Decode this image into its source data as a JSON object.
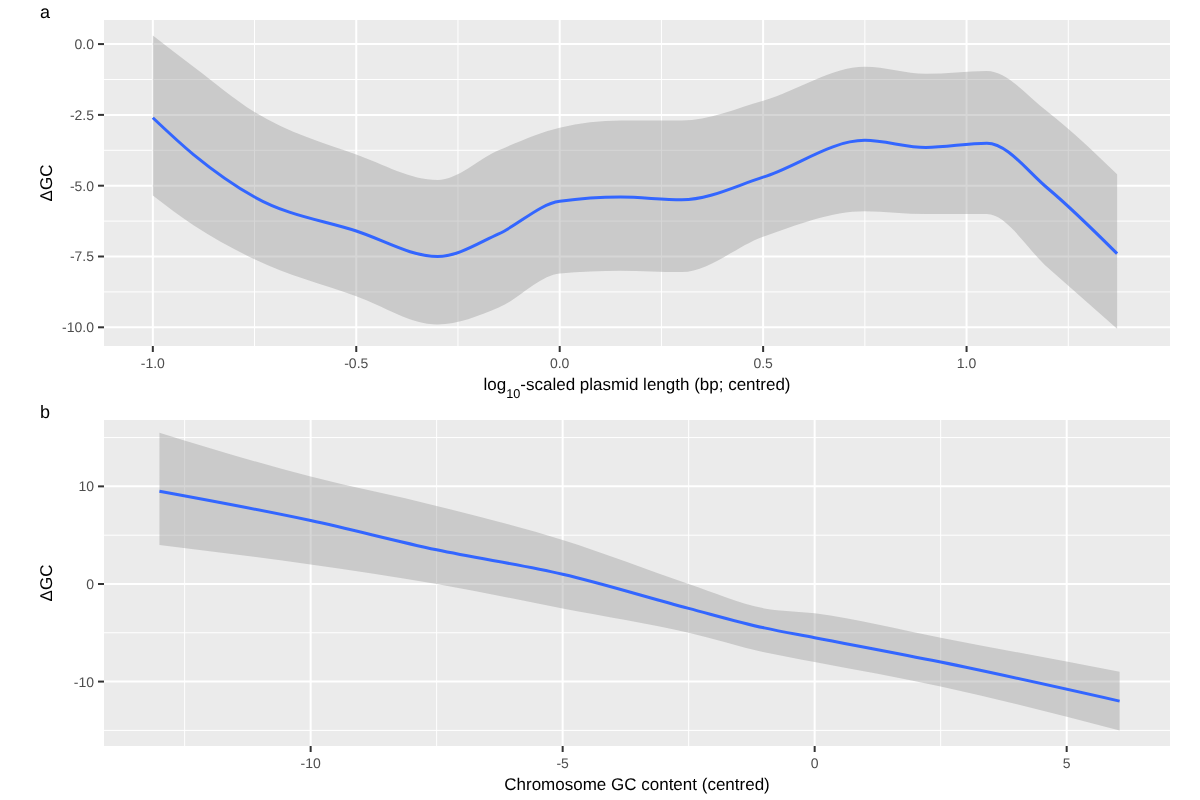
{
  "chart_data": [
    {
      "type": "line",
      "title": "a",
      "xlabel": "log$_{10}$-scaled plasmid length (bp; centred)",
      "ylabel": "ΔGC",
      "xlim": [
        -1.12,
        1.5
      ],
      "ylim": [
        -10.66,
        0.85
      ],
      "xticks": [
        {
          "value": -1,
          "label": "-1.0"
        },
        {
          "value": -0.5,
          "label": "-0.5"
        },
        {
          "value": 0,
          "label": "0.0"
        },
        {
          "value": 0.5,
          "label": "0.5"
        },
        {
          "value": 1,
          "label": "1.0"
        }
      ],
      "yticks": [
        {
          "value": 0,
          "label": "0.0"
        },
        {
          "value": -2.5,
          "label": "-2.5"
        },
        {
          "value": -5,
          "label": "-5.0"
        },
        {
          "value": -7.5,
          "label": "-7.5"
        },
        {
          "value": -10,
          "label": "-10.0"
        }
      ],
      "grid": true,
      "series": [
        {
          "color": "#3366ff",
          "x": [
            -1,
            -0.9,
            -0.75,
            -0.5,
            -0.3,
            -0.15,
            0,
            0.15,
            0.3,
            0.5,
            0.75,
            0.9,
            1.05,
            1.2,
            1.37
          ],
          "values": [
            -2.6,
            -3.9,
            -5.4,
            -6.6,
            -7.5,
            -6.7,
            -5.55,
            -5.4,
            -5.5,
            -4.7,
            -3.4,
            -3.65,
            -3.5,
            -5.1,
            -7.4
          ],
          "lower": [
            -5.35,
            -6.4,
            -7.6,
            -8.9,
            -9.9,
            -9.3,
            -8.1,
            -8.0,
            -8.05,
            -6.8,
            -5.9,
            -6.0,
            -6.0,
            -7.9,
            -10.05
          ],
          "upper": [
            0.3,
            -0.8,
            -2.4,
            -3.9,
            -4.8,
            -3.75,
            -2.95,
            -2.7,
            -2.7,
            -2.0,
            -0.8,
            -1.05,
            -0.95,
            -2.4,
            -4.6
          ]
        }
      ]
    },
    {
      "type": "line",
      "title": "b",
      "xlabel": "Chromosome GC content (centred)",
      "ylabel": "ΔGC",
      "xlim": [
        -14.1,
        7.05
      ],
      "ylim": [
        -16.6,
        16.8
      ],
      "xticks": [
        -10,
        -5,
        0,
        5
      ],
      "yticks": [
        10,
        0,
        -10
      ],
      "grid": true,
      "series": [
        {
          "color": "#3366ff",
          "x": [
            -13,
            -10,
            -7.5,
            -5,
            -2.5,
            -1,
            0,
            2.5,
            6.05
          ],
          "values": [
            9.5,
            6.5,
            3.5,
            1,
            -2.5,
            -4.5,
            -5.5,
            -8,
            -12
          ],
          "lower": [
            4,
            2,
            0,
            -2.5,
            -5,
            -7,
            -8,
            -10.5,
            -15
          ],
          "upper": [
            15.5,
            11,
            8,
            4.5,
            0,
            -2.5,
            -3,
            -5.5,
            -9
          ]
        }
      ]
    }
  ]
}
